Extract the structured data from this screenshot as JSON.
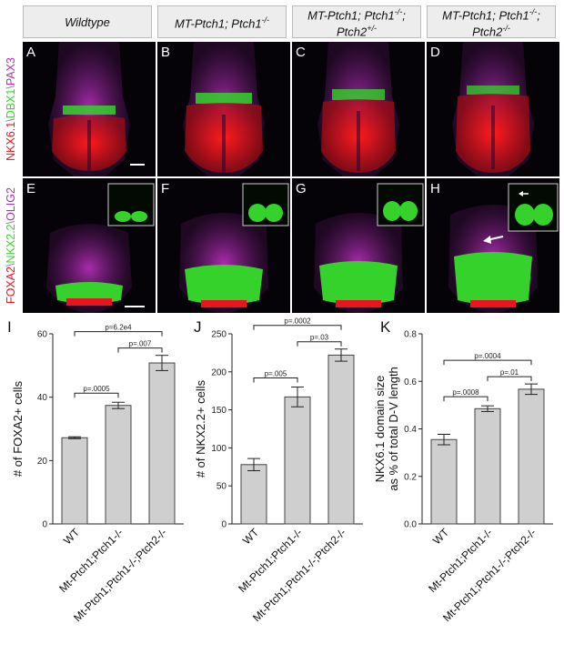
{
  "headers": [
    "Wildtype",
    "MT-Ptch1; Ptch1",
    "MT-Ptch1; Ptch1",
    "MT-Ptch1; Ptch1"
  ],
  "header_parts": {
    "h1": "Wildtype",
    "h2_main": "MT-Ptch1; Ptch1",
    "h2_sup": "-/-",
    "h3_main": "MT-Ptch1; Ptch1",
    "h3_sup": "-/-",
    "h3_line2": "Ptch2",
    "h3_sup2": "+/-",
    "h4_main": "MT-Ptch1; Ptch1",
    "h4_sup": "-/-",
    "h4_line2": "Ptch2",
    "h4_sup2": "-/-"
  },
  "row1_channels": {
    "a": "NKX6.1",
    "b": "DBX1",
    "c": "PAX3"
  },
  "row2_channels": {
    "a": "FOXA2",
    "b": "NKX2.2",
    "c": "OLIG2"
  },
  "colors": {
    "red": "#e8141e",
    "green": "#3ad12e",
    "magenta": "#b12fb4"
  },
  "panel_labels": [
    "A",
    "B",
    "C",
    "D",
    "E",
    "F",
    "G",
    "H"
  ],
  "chart_data": [
    {
      "type": "bar",
      "panel_label": "I",
      "ylabel": "# of FOXA2+ cells",
      "categories": [
        "WT",
        "Mt-Ptch1;Ptch1-/-",
        "Mt-Ptch1;Ptch1-/-;Ptch2-/-"
      ],
      "values": [
        27.2,
        37.4,
        50.8
      ],
      "errors": [
        0.3,
        1.0,
        2.4
      ],
      "ylim": [
        0,
        60
      ],
      "yticks": [
        0,
        20,
        40,
        60
      ],
      "pvalues": [
        {
          "from": 0,
          "to": 1,
          "label": "p=.0005"
        },
        {
          "from": 0,
          "to": 2,
          "label": "p=6.2e4"
        },
        {
          "from": 1,
          "to": 2,
          "label": "p=.007"
        }
      ]
    },
    {
      "type": "bar",
      "panel_label": "J",
      "ylabel": "# of NKX2.2+ cells",
      "categories": [
        "WT",
        "Mt-Ptch1;Ptch1-/-",
        "Mt-Ptch1;Ptch1-/-;Ptch2-/-"
      ],
      "values": [
        78,
        167,
        222
      ],
      "errors": [
        8,
        13,
        8
      ],
      "ylim": [
        0,
        250
      ],
      "yticks": [
        0,
        50,
        100,
        150,
        200,
        250
      ],
      "pvalues": [
        {
          "from": 0,
          "to": 1,
          "label": "p=.005"
        },
        {
          "from": 0,
          "to": 2,
          "label": "p=.0002"
        },
        {
          "from": 1,
          "to": 2,
          "label": "p=.03"
        }
      ]
    },
    {
      "type": "bar",
      "panel_label": "K",
      "ylabel": "NKX6.1 domain size as % of total D-V length",
      "ylabel_lines": [
        "NKX6.1 domain size",
        "as % of total D-V length"
      ],
      "categories": [
        "WT",
        "Mt-Ptch1;Ptch1-/-",
        "Mt-Ptch1;Ptch1-/-;Ptch2-/-"
      ],
      "values": [
        0.355,
        0.485,
        0.567
      ],
      "errors": [
        0.022,
        0.012,
        0.022
      ],
      "ylim": [
        0,
        0.8
      ],
      "yticks": [
        0,
        0.2,
        0.4,
        0.6,
        0.8
      ],
      "ytick_labels": [
        "0.0",
        "0.2",
        "0.4",
        "0.6",
        "0.8"
      ],
      "pvalues": [
        {
          "from": 0,
          "to": 1,
          "label": "p=.0008"
        },
        {
          "from": 0,
          "to": 2,
          "label": "p=.0004"
        },
        {
          "from": 1,
          "to": 2,
          "label": "p=.01"
        }
      ]
    }
  ]
}
